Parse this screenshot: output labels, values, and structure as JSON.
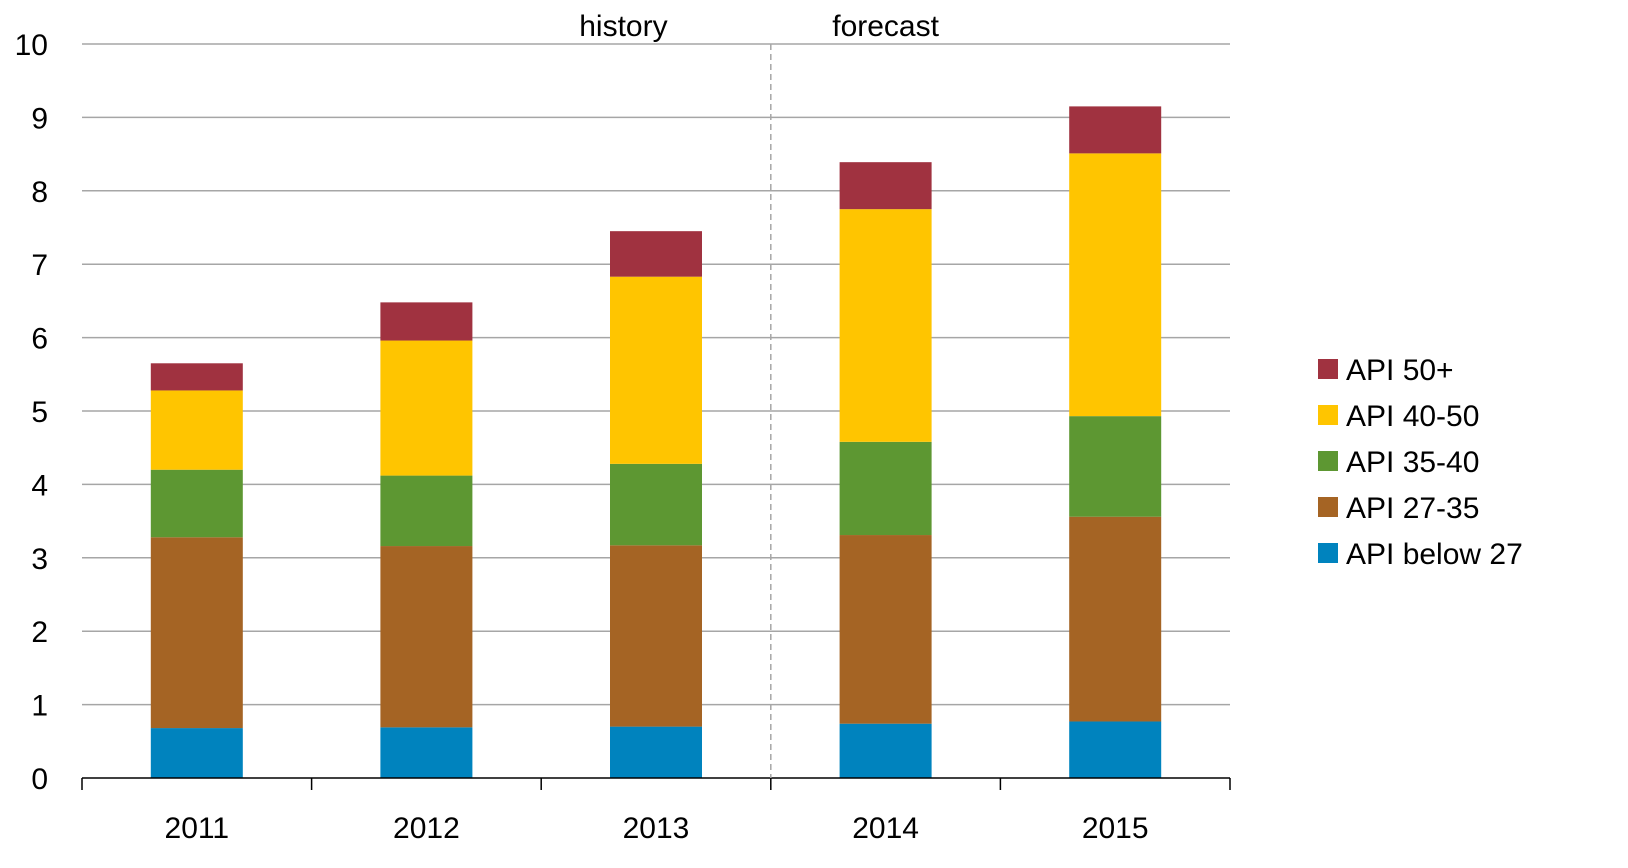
{
  "chart_data": {
    "type": "bar",
    "stacked": true,
    "title": "",
    "xlabel": "",
    "ylabel": "",
    "categories": [
      "2011",
      "2012",
      "2013",
      "2014",
      "2015"
    ],
    "ylim": [
      0,
      10
    ],
    "yticks": [
      "0",
      "1",
      "2",
      "3",
      "4",
      "5",
      "6",
      "7",
      "8",
      "9",
      "10"
    ],
    "grid": true,
    "legend_position": "right",
    "annotations": {
      "history_label": "history",
      "forecast_label": "forecast",
      "divider_between": [
        "2013",
        "2014"
      ]
    },
    "series": [
      {
        "name": "API below 27",
        "color": "#0083BE",
        "values": [
          0.68,
          0.69,
          0.7,
          0.74,
          0.77
        ]
      },
      {
        "name": "API 27-35",
        "color": "#A56424",
        "values": [
          2.6,
          2.47,
          2.47,
          2.57,
          2.79
        ]
      },
      {
        "name": "API 35-40",
        "color": "#5D9732",
        "values": [
          0.92,
          0.96,
          1.11,
          1.27,
          1.37
        ]
      },
      {
        "name": "API 40-50",
        "color": "#FFC500",
        "values": [
          1.08,
          1.84,
          2.55,
          3.17,
          3.58
        ]
      },
      {
        "name": "API 50+",
        "color": "#A03240",
        "values": [
          0.37,
          0.52,
          0.62,
          0.64,
          0.64
        ]
      }
    ],
    "legend_order": [
      "API 50+",
      "API 40-50",
      "API 35-40",
      "API 27-35",
      "API below 27"
    ]
  }
}
